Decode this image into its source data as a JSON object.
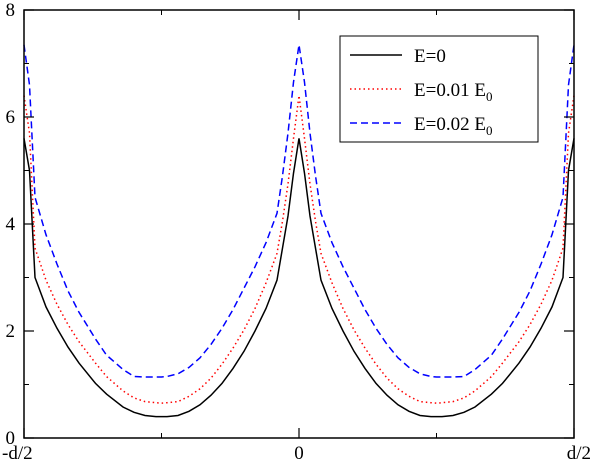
{
  "chart_data": {
    "type": "line",
    "title": "",
    "xlabel": "",
    "ylabel": "",
    "xlim": [
      -0.5,
      0.5
    ],
    "ylim": [
      0,
      8
    ],
    "x_ticks": [
      {
        "value": -0.5,
        "label": "-d/2"
      },
      {
        "value": 0,
        "label": "0"
      },
      {
        "value": 0.5,
        "label": "d/2"
      }
    ],
    "y_ticks": [
      {
        "value": 0,
        "label": "0"
      },
      {
        "value": 2,
        "label": "2"
      },
      {
        "value": 4,
        "label": "4"
      },
      {
        "value": 6,
        "label": "6"
      },
      {
        "value": 8,
        "label": "8"
      }
    ],
    "grid": false,
    "legend_position": "top-right",
    "x": [
      -0.5,
      -0.49,
      -0.48,
      -0.46,
      -0.44,
      -0.42,
      -0.4,
      -0.37,
      -0.35,
      -0.32,
      -0.3,
      -0.28,
      -0.26,
      -0.25,
      -0.24,
      -0.22,
      -0.2,
      -0.18,
      -0.16,
      -0.14,
      -0.12,
      -0.1,
      -0.08,
      -0.06,
      -0.04,
      -0.03,
      -0.02,
      -0.01,
      0,
      0.01,
      0.02,
      0.03,
      0.04,
      0.06,
      0.08,
      0.1,
      0.12,
      0.14,
      0.16,
      0.18,
      0.2,
      0.22,
      0.24,
      0.25,
      0.26,
      0.28,
      0.3,
      0.32,
      0.35,
      0.37,
      0.4,
      0.42,
      0.44,
      0.46,
      0.48,
      0.49,
      0.5
    ],
    "series": [
      {
        "name": "E=0",
        "color": "#000000",
        "dash": "solid",
        "values": [
          5.6,
          5.0,
          3.0,
          2.45,
          2.05,
          1.7,
          1.4,
          1.02,
          0.82,
          0.58,
          0.48,
          0.42,
          0.4,
          0.4,
          0.4,
          0.42,
          0.5,
          0.62,
          0.8,
          1.02,
          1.3,
          1.62,
          2.0,
          2.42,
          2.95,
          3.55,
          4.15,
          4.95,
          5.6,
          4.95,
          4.15,
          3.55,
          2.95,
          2.42,
          2.0,
          1.62,
          1.3,
          1.02,
          0.8,
          0.62,
          0.5,
          0.42,
          0.4,
          0.4,
          0.4,
          0.42,
          0.48,
          0.58,
          0.82,
          1.02,
          1.4,
          1.7,
          2.05,
          2.45,
          3.0,
          5.0,
          5.6
        ]
      },
      {
        "name": "E=0.01 E0",
        "color": "#ff0000",
        "dash": "dotted",
        "values": [
          6.4,
          5.7,
          3.55,
          2.95,
          2.5,
          2.12,
          1.8,
          1.4,
          1.15,
          0.88,
          0.75,
          0.68,
          0.66,
          0.65,
          0.66,
          0.68,
          0.78,
          0.92,
          1.12,
          1.38,
          1.68,
          2.02,
          2.42,
          2.9,
          3.45,
          4.05,
          4.75,
          5.6,
          6.4,
          5.6,
          4.75,
          4.05,
          3.45,
          2.9,
          2.42,
          2.02,
          1.68,
          1.38,
          1.12,
          0.92,
          0.78,
          0.68,
          0.66,
          0.65,
          0.66,
          0.68,
          0.75,
          0.88,
          1.15,
          1.4,
          1.8,
          2.12,
          2.5,
          2.95,
          3.55,
          5.7,
          6.4
        ]
      },
      {
        "name": "E=0.02 E0",
        "color": "#0000ff",
        "dash": "dashed",
        "values": [
          7.35,
          6.6,
          4.5,
          3.8,
          3.25,
          2.75,
          2.35,
          1.85,
          1.55,
          1.28,
          1.15,
          1.14,
          1.14,
          1.14,
          1.15,
          1.2,
          1.32,
          1.5,
          1.75,
          2.05,
          2.4,
          2.8,
          3.2,
          3.65,
          4.2,
          4.9,
          5.7,
          6.65,
          7.35,
          6.65,
          5.7,
          4.9,
          4.2,
          3.65,
          3.2,
          2.8,
          2.4,
          2.05,
          1.75,
          1.5,
          1.32,
          1.2,
          1.15,
          1.14,
          1.14,
          1.14,
          1.15,
          1.28,
          1.55,
          1.85,
          2.35,
          2.75,
          3.25,
          3.8,
          4.5,
          6.6,
          7.35
        ]
      }
    ],
    "legend": [
      {
        "main": "E=0",
        "sub": ""
      },
      {
        "main": "E=0.01 E",
        "sub": "0"
      },
      {
        "main": "E=0.02 E",
        "sub": "0"
      }
    ]
  }
}
